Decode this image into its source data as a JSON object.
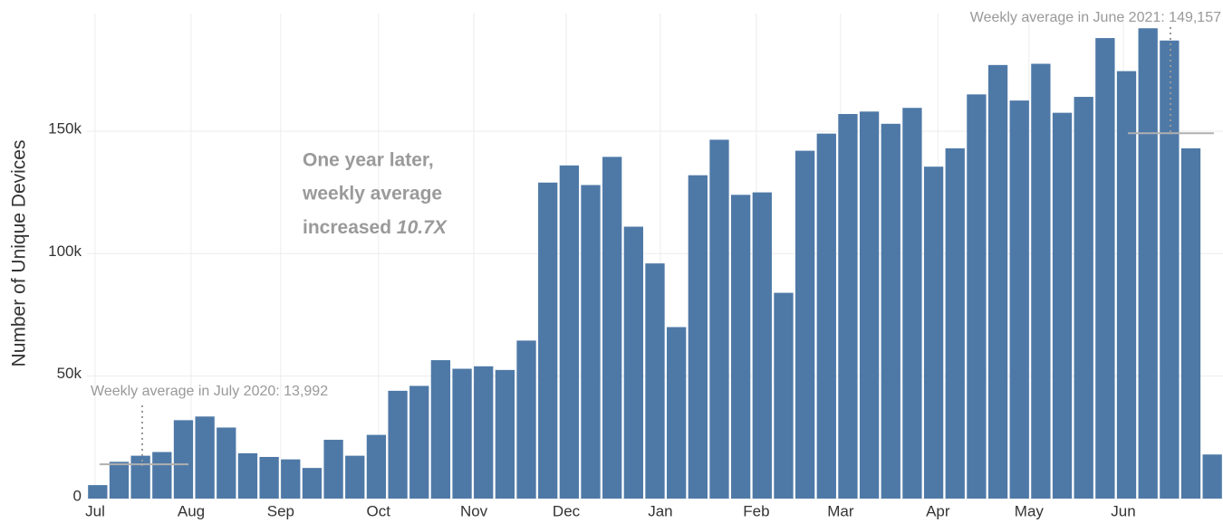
{
  "chart_data": {
    "type": "bar",
    "y_label": "Number of Unique Devices",
    "color": "#4e79a7",
    "x": [
      0,
      1,
      2,
      3,
      4,
      5,
      6,
      7,
      8,
      9,
      10,
      11,
      12,
      13,
      14,
      15,
      16,
      17,
      18,
      19,
      20,
      21,
      22,
      23,
      24,
      25,
      26,
      27,
      28,
      29,
      30,
      31,
      32,
      33,
      34,
      35,
      36,
      37,
      38,
      39,
      40,
      41,
      42,
      43,
      44,
      45,
      46,
      47,
      48,
      49,
      50,
      51,
      52
    ],
    "values": [
      5500,
      15000,
      17500,
      19000,
      32000,
      33500,
      29000,
      18500,
      17000,
      16000,
      12500,
      24000,
      17500,
      26000,
      44000,
      46000,
      56500,
      53000,
      54000,
      52500,
      64500,
      129000,
      136000,
      128000,
      139500,
      111000,
      96000,
      70000,
      132000,
      146500,
      124000,
      125000,
      84000,
      142000,
      149000,
      157000,
      158000,
      153000,
      159500,
      135500,
      143000,
      165000,
      177000,
      162500,
      177500,
      157500,
      164000,
      188000,
      174500,
      192000,
      187000,
      143000,
      18000
    ],
    "xlim": [
      -0.5,
      52.5
    ],
    "xticks": [
      {
        "value": -0.12,
        "label": "Jul"
      },
      {
        "value": 4.36,
        "label": "Aug"
      },
      {
        "value": 8.54,
        "label": "Sep"
      },
      {
        "value": 13.1,
        "label": "Oct"
      },
      {
        "value": 17.55,
        "label": "Nov"
      },
      {
        "value": 21.86,
        "label": "Dec"
      },
      {
        "value": 26.25,
        "label": "Jan"
      },
      {
        "value": 30.73,
        "label": "Feb"
      },
      {
        "value": 34.66,
        "label": "Mar"
      },
      {
        "value": 39.2,
        "label": "Apr"
      },
      {
        "value": 43.45,
        "label": "May"
      },
      {
        "value": 47.85,
        "label": "Jun"
      }
    ],
    "ylim": [
      0,
      198000
    ],
    "yticks": [
      0,
      {
        "value": 50000,
        "label": "50k"
      },
      {
        "value": 100000,
        "label": "100k"
      },
      {
        "value": 150000,
        "label": "150k"
      }
    ],
    "grid": true,
    "annotations": [
      {
        "text": "Weekly average in July 2020: 13,992",
        "value": 13992
      },
      {
        "text": "Weekly average in June 2021: 149,157",
        "value": 149157
      }
    ],
    "callout": {
      "lines": [
        "One year later,",
        "weekly average",
        "increased"
      ],
      "emphasis": "10.7X"
    }
  }
}
